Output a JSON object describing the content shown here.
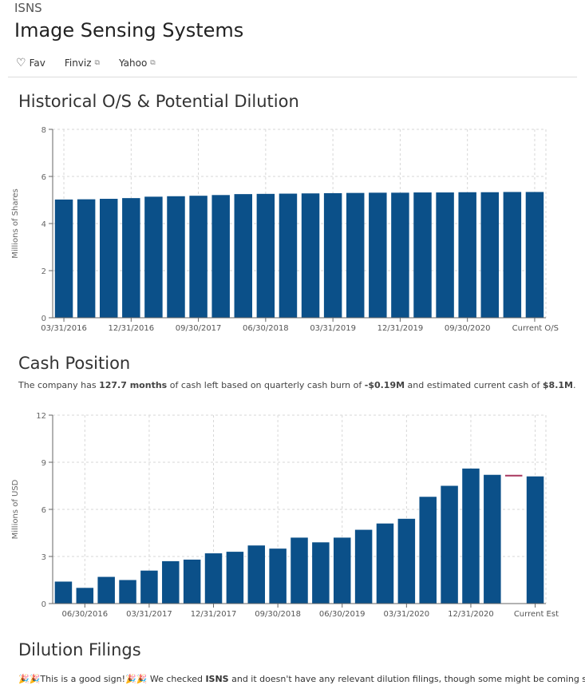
{
  "header": {
    "ticker": "ISNS",
    "company_name": "Image Sensing Systems",
    "links": [
      {
        "label": "Fav",
        "icon": "heart-icon"
      },
      {
        "label": "Finviz",
        "icon": "external-link-icon"
      },
      {
        "label": "Yahoo",
        "icon": "external-link-icon"
      }
    ]
  },
  "sections": {
    "dilution_title": "Historical O/S & Potential Dilution",
    "cash_title": "Cash Position",
    "filings_title": "Dilution Filings"
  },
  "cash_summary": {
    "prefix": "The company has ",
    "months": "127.7 months",
    "middle": " of cash left based on quarterly cash burn of ",
    "burn": "-$0.19M",
    "middle2": " and estimated current cash of ",
    "cash": "$8.1M",
    "suffix": "."
  },
  "filings": {
    "emoji": "🎉🎉",
    "part1": "This is a good sign!",
    "part2": " We checked ",
    "ticker": "ISNS",
    "part3": " and it doesn't have any relevant dilution filings, though some might be coming soon."
  },
  "colors": {
    "bar": "#0b5089",
    "estimate_line": "#a8365e",
    "grid": "#d7d7d7"
  },
  "chart_data": [
    {
      "type": "bar",
      "ylabel": "Millions of Shares",
      "ylim": [
        0,
        8
      ],
      "yticks": [
        0,
        2,
        4,
        6,
        8
      ],
      "grid": true,
      "categories": [
        "03/31/2016",
        "06/30/2016",
        "09/30/2016",
        "12/31/2016",
        "03/31/2017",
        "06/30/2017",
        "09/30/2017",
        "12/31/2017",
        "03/31/2018",
        "06/30/2018",
        "09/30/2018",
        "12/31/2018",
        "03/31/2019",
        "06/30/2019",
        "09/30/2019",
        "12/31/2019",
        "03/31/2020",
        "06/30/2020",
        "09/30/2020",
        "12/31/2020",
        "03/31/2021",
        "Current O/S"
      ],
      "values": [
        5.02,
        5.03,
        5.05,
        5.08,
        5.14,
        5.16,
        5.18,
        5.21,
        5.25,
        5.26,
        5.27,
        5.28,
        5.29,
        5.3,
        5.31,
        5.31,
        5.32,
        5.32,
        5.33,
        5.33,
        5.34,
        5.34
      ],
      "visible_tick_labels": [
        "03/31/2016",
        "12/31/2016",
        "09/30/2017",
        "06/30/2018",
        "03/31/2019",
        "12/31/2019",
        "09/30/2020",
        "Current O/S"
      ]
    },
    {
      "type": "bar",
      "ylabel": "Millions of USD",
      "ylim": [
        0,
        12
      ],
      "yticks": [
        0,
        3,
        6,
        9,
        12
      ],
      "grid": true,
      "categories": [
        "03/31/2016",
        "06/30/2016",
        "09/30/2016",
        "12/31/2016",
        "03/31/2017",
        "06/30/2017",
        "09/30/2017",
        "12/31/2017",
        "03/31/2018",
        "06/30/2018",
        "09/30/2018",
        "12/31/2018",
        "03/31/2019",
        "06/30/2019",
        "09/30/2019",
        "12/31/2019",
        "03/31/2020",
        "06/30/2020",
        "09/30/2020",
        "12/31/2020",
        "03/31/2021",
        "",
        "Current Est"
      ],
      "values": [
        1.4,
        1.0,
        1.7,
        1.5,
        2.1,
        2.7,
        2.8,
        3.2,
        3.3,
        3.7,
        3.5,
        4.2,
        3.9,
        4.2,
        4.7,
        5.1,
        5.4,
        6.8,
        7.5,
        8.6,
        8.2,
        null,
        8.1
      ],
      "estimate_marker": {
        "index": 21,
        "value": 8.15
      },
      "visible_tick_labels": [
        "06/30/2016",
        "03/31/2017",
        "12/31/2017",
        "09/30/2018",
        "06/30/2019",
        "03/31/2020",
        "12/31/2020",
        "Current Est"
      ]
    }
  ]
}
